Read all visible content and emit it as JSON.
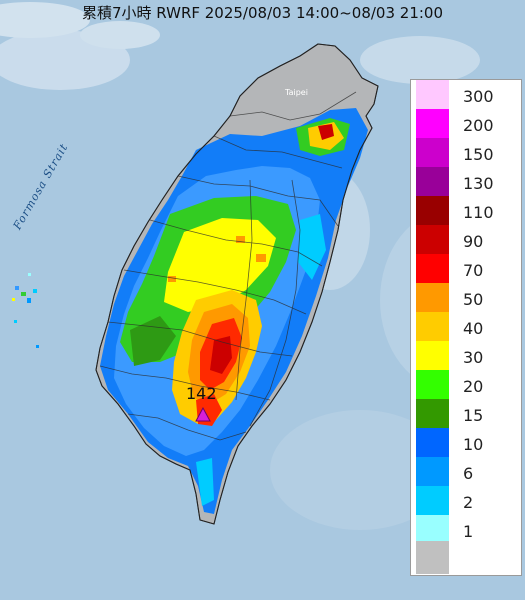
{
  "title": "累積7小時 RWRF 2025/08/03 14:00~08/03 21:00",
  "strait_label": "Formosa Strait",
  "max_marker": {
    "value": "142",
    "color": "#d61fd6"
  },
  "map_labels": {
    "taipei": "Taipei"
  },
  "legend": {
    "items": [
      {
        "label": "300",
        "color": "#ffc8ff"
      },
      {
        "label": "200",
        "color": "#ff00ff"
      },
      {
        "label": "150",
        "color": "#cc00cc"
      },
      {
        "label": "130",
        "color": "#990099"
      },
      {
        "label": "110",
        "color": "#990000"
      },
      {
        "label": "90",
        "color": "#cc0000"
      },
      {
        "label": "70",
        "color": "#ff0000"
      },
      {
        "label": "50",
        "color": "#ff9900"
      },
      {
        "label": "40",
        "color": "#ffcc00"
      },
      {
        "label": "30",
        "color": "#ffff00"
      },
      {
        "label": "20",
        "color": "#33ff00"
      },
      {
        "label": "15",
        "color": "#339900"
      },
      {
        "label": "10",
        "color": "#0066ff"
      },
      {
        "label": "6",
        "color": "#0099ff"
      },
      {
        "label": "2",
        "color": "#00ccff"
      },
      {
        "label": "1",
        "color": "#99ffff"
      },
      {
        "label": "",
        "color": "#c0c0c0"
      }
    ]
  }
}
